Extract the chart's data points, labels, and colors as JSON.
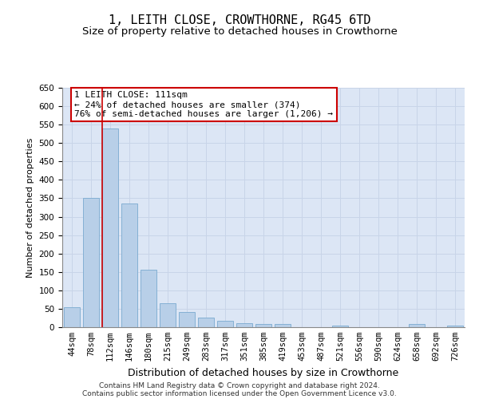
{
  "title": "1, LEITH CLOSE, CROWTHORNE, RG45 6TD",
  "subtitle": "Size of property relative to detached houses in Crowthorne",
  "xlabel": "Distribution of detached houses by size in Crowthorne",
  "ylabel": "Number of detached properties",
  "categories": [
    "44sqm",
    "78sqm",
    "112sqm",
    "146sqm",
    "180sqm",
    "215sqm",
    "249sqm",
    "283sqm",
    "317sqm",
    "351sqm",
    "385sqm",
    "419sqm",
    "453sqm",
    "487sqm",
    "521sqm",
    "556sqm",
    "590sqm",
    "624sqm",
    "658sqm",
    "692sqm",
    "726sqm"
  ],
  "values": [
    55,
    350,
    540,
    335,
    155,
    65,
    42,
    25,
    18,
    10,
    8,
    8,
    0,
    0,
    5,
    0,
    0,
    0,
    8,
    0,
    5
  ],
  "bar_color": "#b8cfe8",
  "bar_edge_color": "#7aaad0",
  "grid_color": "#c8d4e8",
  "background_color": "#dce6f5",
  "marker_bar_index": 2,
  "marker_line_color": "#cc0000",
  "annotation_line1": "1 LEITH CLOSE: 111sqm",
  "annotation_line2": "← 24% of detached houses are smaller (374)",
  "annotation_line3": "76% of semi-detached houses are larger (1,206) →",
  "annotation_box_color": "#cc0000",
  "ylim": [
    0,
    650
  ],
  "yticks": [
    0,
    50,
    100,
    150,
    200,
    250,
    300,
    350,
    400,
    450,
    500,
    550,
    600,
    650
  ],
  "footer_line1": "Contains HM Land Registry data © Crown copyright and database right 2024.",
  "footer_line2": "Contains public sector information licensed under the Open Government Licence v3.0.",
  "title_fontsize": 11,
  "subtitle_fontsize": 9.5,
  "xlabel_fontsize": 9,
  "ylabel_fontsize": 8,
  "tick_fontsize": 7.5,
  "annotation_fontsize": 8,
  "footer_fontsize": 6.5
}
